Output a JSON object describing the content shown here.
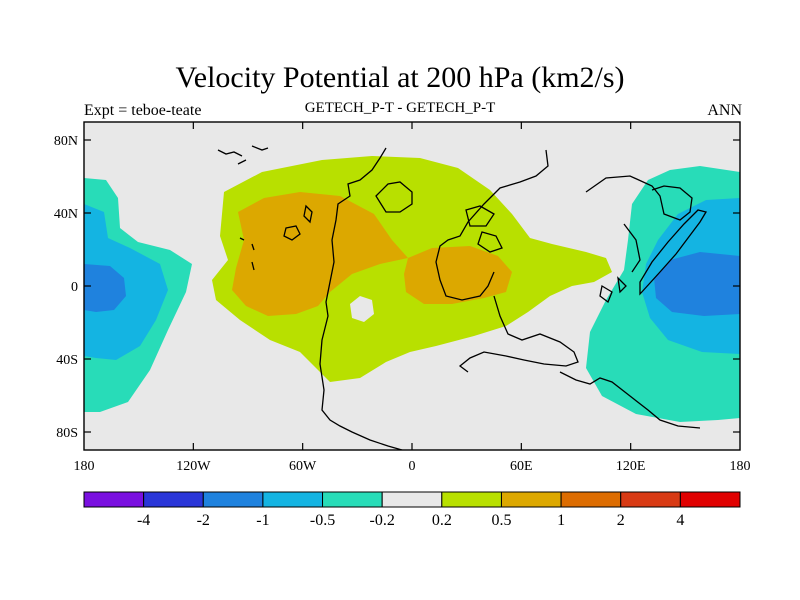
{
  "title": "Velocity Potential at 200 hPa (km2/s)",
  "expt_label": "Expt = teboe-teate",
  "subtitle": "GETECH_P-T - GETECH_P-T",
  "season": "ANN",
  "y_axis_labels": [
    "80N",
    "40N",
    "0",
    "40S",
    "80S"
  ],
  "x_axis_labels": [
    "180",
    "120W",
    "60W",
    "0",
    "60E",
    "120E",
    "180"
  ],
  "colorbar": {
    "colors": [
      "#7a10e0",
      "#2a36d8",
      "#1f82de",
      "#14b4e2",
      "#28dcb8",
      "#e8e8e8",
      "#b8e000",
      "#dca800",
      "#dc6c00",
      "#d83a14",
      "#e00000"
    ],
    "labels": [
      "-4",
      "-2",
      "-1",
      "-0.5",
      "-0.2",
      "0.2",
      "0.5",
      "1",
      "2",
      "4"
    ]
  },
  "palette": {
    "background": "#e8e8e8",
    "positive_low": "#b8e000",
    "positive_mid": "#dca800",
    "negative_low": "#28dcb8",
    "negative_mid": "#14b4e2",
    "negative_high": "#1f82de"
  }
}
